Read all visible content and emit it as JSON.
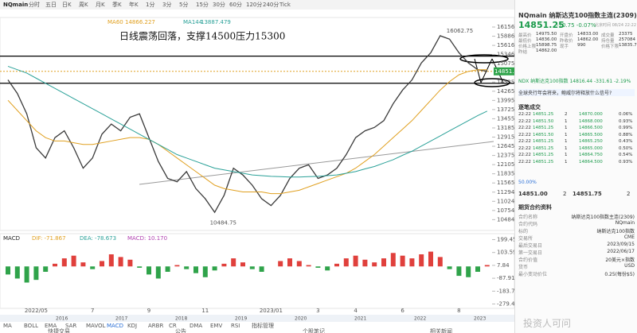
{
  "toolbar": {
    "symbol": "NQmain",
    "periods": [
      "分时",
      "五日",
      "日K",
      "周K",
      "月K",
      "季K",
      "年K",
      "1分",
      "3分",
      "5分",
      "15分",
      "30分",
      "60分",
      "120分",
      "240分",
      "Tick"
    ]
  },
  "chart_data": [
    {
      "type": "line",
      "annotation": "日线震荡回落，支撑14500压力15300",
      "categories": [
        null,
        null,
        null,
        "2022/05",
        null,
        null,
        null,
        null,
        null,
        "7",
        null,
        null,
        null,
        null,
        null,
        "9",
        null,
        null,
        null,
        null,
        null,
        "11",
        null,
        null,
        null,
        null,
        null,
        null,
        "2023/01",
        null,
        null,
        null,
        null,
        "3",
        null,
        null,
        null,
        "4",
        null,
        null,
        null,
        null,
        "6",
        null,
        null,
        null,
        null,
        null,
        "8",
        null,
        null,
        null
      ],
      "series": [
        {
          "color": "#3a3a3a",
          "values": [
            14600,
            14200,
            13600,
            12600,
            12300,
            12900,
            13100,
            12600,
            12000,
            12300,
            13000,
            13300,
            13100,
            13500,
            13600,
            12900,
            12200,
            11700,
            11600,
            11900,
            11400,
            11100,
            10700,
            11200,
            12000,
            11800,
            11500,
            11100,
            10900,
            11200,
            11700,
            12000,
            12100,
            11700,
            11800,
            12000,
            12400,
            12900,
            13100,
            13200,
            13400,
            13900,
            14300,
            14600,
            15100,
            15400,
            15900,
            15800,
            15400,
            15100,
            14900,
            14851.25
          ]
        },
        {
          "name": "MA60",
          "legend_value": "14866.227",
          "color": "#e0a020",
          "values": [
            14000,
            13700,
            13400,
            13100,
            12900,
            12800,
            12800,
            12750,
            12700,
            12700,
            12750,
            12800,
            12850,
            12900,
            12900,
            12850,
            12700,
            12500,
            12300,
            12100,
            11900,
            11700,
            11500,
            11400,
            11350,
            11300,
            11300,
            11300,
            11250,
            11250,
            11300,
            11350,
            11450,
            11550,
            11650,
            11750,
            11850,
            12000,
            12200,
            12400,
            12650,
            12900,
            13150,
            13400,
            13700,
            14000,
            14300,
            14550,
            14750,
            14850,
            14900,
            14900
          ]
        },
        {
          "name": "MA144",
          "legend_value": "13887.479",
          "color": "#2aa198",
          "values": [
            15000,
            14900,
            14800,
            14650,
            14500,
            14350,
            14200,
            14050,
            13900,
            13750,
            13600,
            13450,
            13300,
            13150,
            13000,
            12850,
            12700,
            12550,
            12400,
            12300,
            12200,
            12100,
            12000,
            11950,
            11900,
            11850,
            11800,
            11780,
            11760,
            11750,
            11740,
            11740,
            11750,
            11760,
            11780,
            11800,
            11850,
            11900,
            11980,
            12050,
            12150,
            12250,
            12380,
            12500,
            12650,
            12800,
            12950,
            13100,
            13250,
            13400,
            13550,
            13680
          ]
        }
      ],
      "hlines": [
        15300,
        14500
      ],
      "last_price": 14851.25,
      "high_label": "16062.75",
      "low_label": "10484.75",
      "ylim": [
        10400,
        16250
      ],
      "yticks": [
        {
          "value": 16156.24,
          "label": "16156.24"
        },
        {
          "value": 15886.17,
          "label": "15886.17"
        },
        {
          "value": 15616.1,
          "label": "15616.10"
        },
        {
          "value": 15346.03,
          "label": "15346.03"
        },
        {
          "value": 15075.96,
          "label": "15075.96"
        },
        {
          "value": 14535.82,
          "label": "14535.82"
        },
        {
          "value": 14265.74,
          "label": "14265.74"
        },
        {
          "value": 13995.67,
          "label": "13995.67"
        },
        {
          "value": 13725.6,
          "label": "13725.60"
        },
        {
          "value": 13455.53,
          "label": "13455.53"
        },
        {
          "value": 13185.46,
          "label": "13185.46"
        },
        {
          "value": 12915.39,
          "label": "12915.39"
        },
        {
          "value": 12645.32,
          "label": "12645.32"
        },
        {
          "value": 12375.25,
          "label": "12375.25"
        },
        {
          "value": 12105.18,
          "label": "12105.18"
        },
        {
          "value": 11835.11,
          "label": "11835.11"
        },
        {
          "value": 11565.04,
          "label": "11565.04"
        },
        {
          "value": 11294.96,
          "label": "11294.96"
        },
        {
          "value": 11024.89,
          "label": "11024.89"
        },
        {
          "value": 10754.82,
          "label": "10754.82"
        },
        {
          "value": 10484.75,
          "label": "10484.75"
        }
      ],
      "overview_labels": [
        "2016",
        "2017",
        "2018",
        "2019",
        "2020",
        "2021",
        "2022",
        "2023"
      ]
    },
    {
      "type": "bar",
      "name": "MACD",
      "header": [
        "DIF: -71.867",
        "DEA: -78.673",
        "MACD: 10.170"
      ],
      "up_color": "#e0403c",
      "down_color": "#2fa34a",
      "values": [
        -60,
        -90,
        -120,
        -100,
        -40,
        20,
        60,
        80,
        30,
        -20,
        40,
        90,
        70,
        50,
        -10,
        -60,
        -90,
        -40,
        10,
        -20,
        -50,
        -80,
        -30,
        20,
        60,
        30,
        -20,
        -40,
        0,
        40,
        60,
        40,
        10,
        -10,
        -30,
        20,
        60,
        80,
        50,
        30,
        60,
        100,
        80,
        60,
        90,
        110,
        70,
        -20,
        -70,
        -80,
        -40,
        10.17
      ],
      "ylim": [
        -300,
        220
      ],
      "yticks": [
        199.45,
        103.59,
        7.84,
        -87.91,
        -183.76,
        -279.41
      ]
    }
  ],
  "indicator_tabs": [
    "MA",
    "BOLL",
    "EMA",
    "SAR",
    "MAVOL",
    "MACD",
    "KDJ",
    "ARBR",
    "CR",
    "DMA",
    "EMV",
    "RSI",
    "指标管理"
  ],
  "footer_tabs": [
    "快捷交易",
    "公告",
    "个股笔记",
    "相关新闻"
  ],
  "quote": {
    "title": "NQmain  纳斯达克100指数主连(2309)",
    "price": "14851.25",
    "change": "-10.75  -0.07%",
    "time": "北京时间 08/24 22:22",
    "stats": [
      [
        "最高价",
        "14975.50"
      ],
      [
        "开盘价",
        "14833.00"
      ],
      [
        "成交量",
        "23375"
      ],
      [
        "最低价",
        "14836.00"
      ],
      [
        "昨收价",
        "14862.00"
      ],
      [
        "持仓量",
        "257084"
      ],
      [
        "价格上限",
        "15898.75"
      ],
      [
        "现手",
        "990"
      ],
      [
        "价格下限",
        "13835.75"
      ],
      [
        "昨结",
        "14862.00"
      ]
    ],
    "index_line": "NDX 纳斯达克100指数  14816.44  -331.61  -2.19%",
    "banner": "全球央行年会将来，鲍威尔将释放什么信号?",
    "trades_title": "逐笔成交",
    "trades": [
      [
        "22:22",
        "14851.25",
        "2",
        "14870.000",
        "0.06%"
      ],
      [
        "22:22",
        "14851.50",
        "1",
        "14868.000",
        "0.93%"
      ],
      [
        "22:22",
        "14851.25",
        "1",
        "14866.500",
        "0.99%"
      ],
      [
        "22:22",
        "14851.50",
        "1",
        "14865.500",
        "0.88%"
      ],
      [
        "22:22",
        "14851.25",
        "1",
        "14865.250",
        "0.43%"
      ],
      [
        "22:22",
        "14851.25",
        "1",
        "14865.000",
        "0.50%"
      ],
      [
        "22:22",
        "14851.25",
        "1",
        "14864.750",
        "0.54%"
      ],
      [
        "22:22",
        "14851.25",
        "1",
        "14864.500",
        "0.93%"
      ]
    ],
    "book_pct": "50.00%",
    "bid": "14851.00",
    "bid_qty": "2",
    "ask": "14851.75",
    "ask_qty": "2",
    "info_title": "期货合约资料",
    "info": [
      [
        "合约名称",
        "纳斯达克100指数主连(2309)"
      ],
      [
        "合约代码",
        "NQmain"
      ],
      [
        "标的",
        "纳斯达克100指数"
      ],
      [
        "交易所",
        "CME"
      ],
      [
        "最后交易日",
        "2023/09/15"
      ],
      [
        "第一交易日",
        "2022/06/17"
      ],
      [
        "合约价值",
        "20美元×指数"
      ],
      [
        "货币",
        "USD"
      ],
      [
        "最小变动价位",
        "0.25(每份$5)"
      ]
    ]
  },
  "watermark": "投资人可问"
}
